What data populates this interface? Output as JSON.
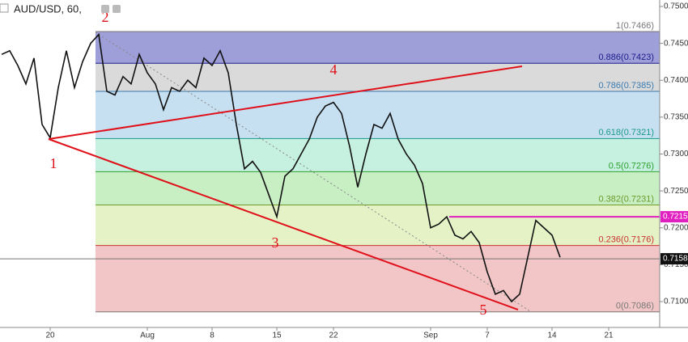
{
  "chart_data": {
    "type": "line",
    "title": "AUD/USD, 60,",
    "categories": [
      null,
      null,
      null,
      null,
      null,
      null,
      "20",
      null,
      null,
      null,
      null,
      null,
      null,
      null,
      null,
      null,
      null,
      null,
      "Aug",
      null,
      null,
      null,
      null,
      null,
      null,
      null,
      "8",
      null,
      null,
      null,
      null,
      null,
      null,
      null,
      "15",
      null,
      null,
      null,
      null,
      null,
      null,
      "22",
      null,
      null,
      null,
      null,
      null,
      null,
      null,
      null,
      null,
      null,
      null,
      "Sep",
      null,
      null,
      null,
      null,
      null,
      null,
      "7",
      null,
      null,
      null,
      null,
      null,
      null,
      null,
      "14",
      null,
      null,
      null,
      null,
      null,
      null,
      "21"
    ],
    "series": [
      {
        "name": "AUD/USD",
        "color": "#111111",
        "values": [
          0.7435,
          0.744,
          0.742,
          0.7395,
          0.743,
          0.734,
          0.7322,
          0.739,
          0.744,
          0.739,
          0.7425,
          0.745,
          0.7462,
          0.7385,
          0.738,
          0.7405,
          0.7395,
          0.7435,
          0.741,
          0.7395,
          0.736,
          0.739,
          0.7385,
          0.74,
          0.739,
          0.743,
          0.742,
          0.744,
          0.741,
          0.734,
          0.728,
          0.729,
          0.7275,
          0.7245,
          0.7215,
          0.727,
          0.728,
          0.73,
          0.732,
          0.735,
          0.7365,
          0.737,
          0.7355,
          0.731,
          0.7255,
          0.73,
          0.734,
          0.7335,
          0.7355,
          0.732,
          0.73,
          0.7285,
          0.726,
          0.72,
          0.7205,
          0.7215,
          0.719,
          0.7185,
          0.7195,
          0.718,
          0.714,
          0.711,
          0.7115,
          0.71,
          0.711,
          0.716,
          0.721,
          0.72,
          0.719,
          0.716,
          null,
          null,
          null,
          null,
          null,
          null
        ]
      }
    ],
    "ylim": [
      0.7505,
      0.7055
    ],
    "yticks": [
      {
        "value": 0.75,
        "label": "0.7500"
      },
      {
        "value": 0.745,
        "label": "0.7450"
      },
      {
        "value": 0.74,
        "label": "0.7400"
      },
      {
        "value": 0.735,
        "label": "0.7350"
      },
      {
        "value": 0.73,
        "label": "0.7300"
      },
      {
        "value": 0.725,
        "label": "0.7250"
      },
      {
        "value": 0.72,
        "label": "0.7200"
      },
      {
        "value": 0.715,
        "label": "0.7150"
      },
      {
        "value": 0.71,
        "label": "0.7100"
      }
    ],
    "fib_levels": [
      {
        "label": "1(0.7466)",
        "value": 0.7466,
        "color": "#787878",
        "fill": "#9e9ed8"
      },
      {
        "label": "0.886(0.7423)",
        "value": 0.7423,
        "color": "#1c1c8c",
        "fill": "#dadada"
      },
      {
        "label": "0.786(0.7385)",
        "value": 0.7385,
        "color": "#3a7bb0",
        "fill": "#c6e0f2"
      },
      {
        "label": "0.618(0.7321)",
        "value": 0.7321,
        "color": "#1a9a8a",
        "fill": "#c6f0e0"
      },
      {
        "label": "0.5(0.7276)",
        "value": 0.7276,
        "color": "#2ea02e",
        "fill": "#c8eec4"
      },
      {
        "label": "0.382(0.7231)",
        "value": 0.7231,
        "color": "#6e9a2a",
        "fill": "#e4f2c6"
      },
      {
        "label": "0.236(0.7176)",
        "value": 0.7176,
        "color": "#cc3030",
        "fill": "#f2c6c6"
      },
      {
        "label": "0(0.7086)",
        "value": 0.7086,
        "color": "#787878",
        "fill": null
      }
    ],
    "price_tags": [
      {
        "label": "0.7215",
        "value": 0.7215,
        "color": "#e020c0"
      },
      {
        "label": "0.7158",
        "value": 0.7158,
        "color": "#111111"
      }
    ],
    "annotations": [
      "1",
      "2",
      "3",
      "4",
      "5"
    ]
  }
}
